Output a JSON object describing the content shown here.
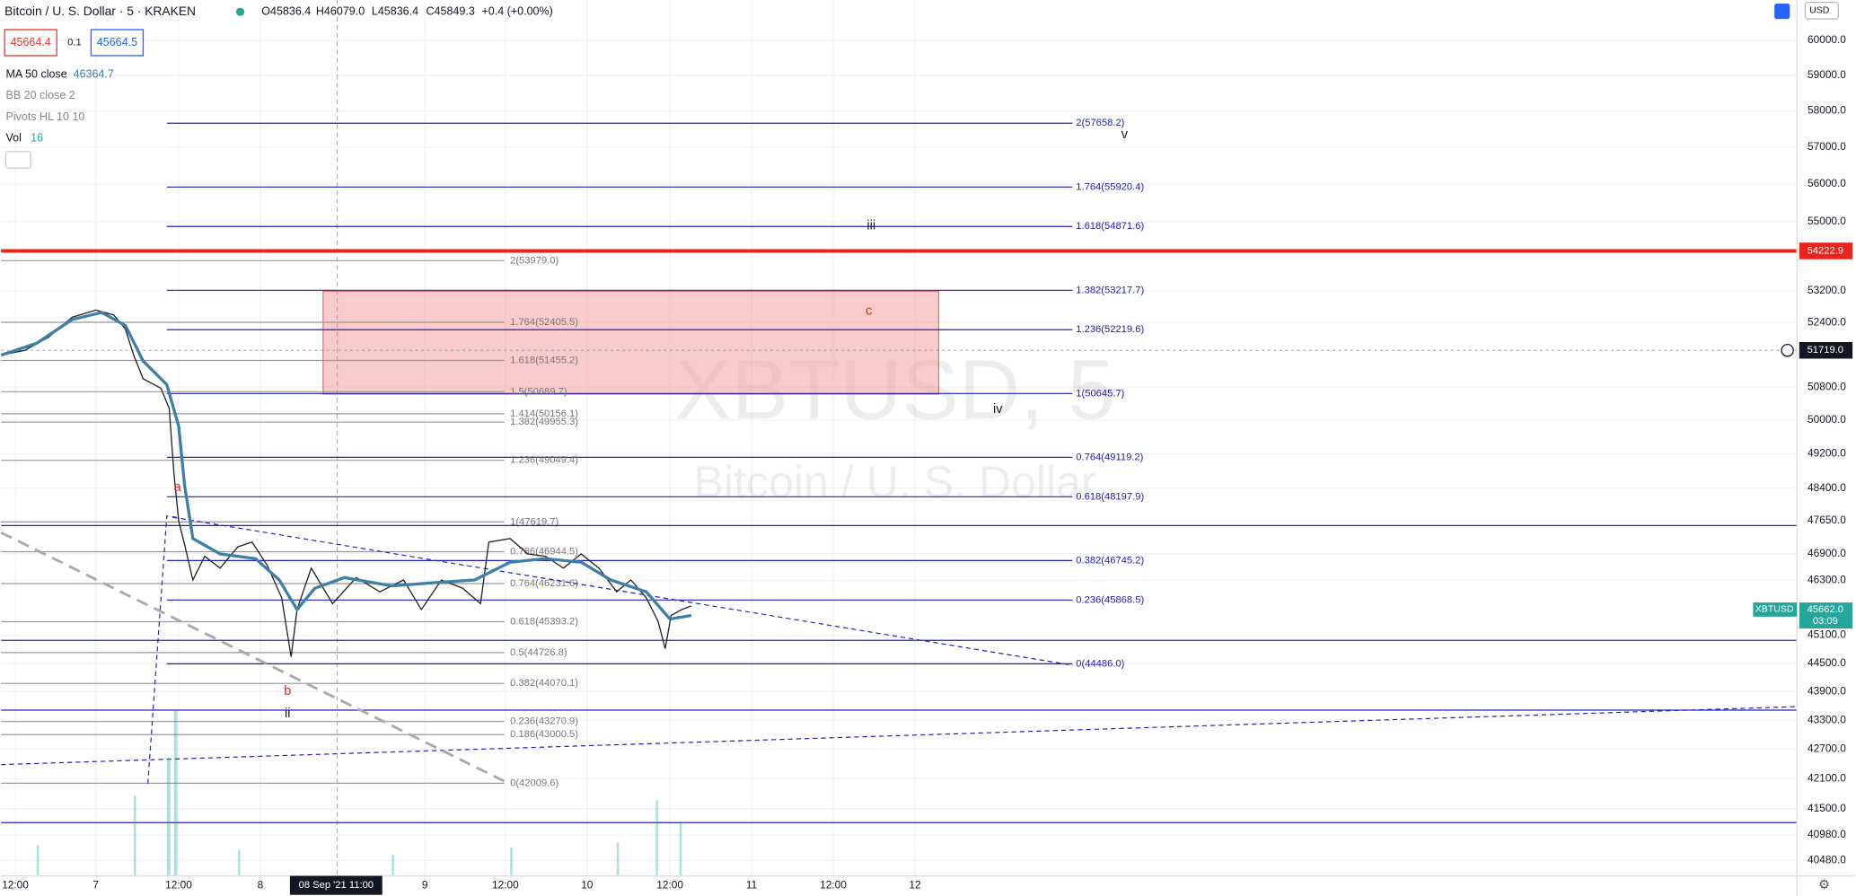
{
  "header": {
    "symbol": "Bitcoin / U. S. Dollar · 5 · KRAKEN",
    "open": "O45836.4",
    "high": "H46079.0",
    "low": "L45836.4",
    "close": "C45849.3",
    "change": "+0.4 (+0.00%)"
  },
  "trade": {
    "bid": "45664.4",
    "spread": "0.1",
    "ask": "45664.5"
  },
  "indicators": [
    {
      "name": "MA 50 close",
      "value": "46364.7"
    },
    {
      "name": "BB 20 close 2"
    },
    {
      "name": "Pivots HL 10 10"
    },
    {
      "name": "Vol",
      "value": "16"
    }
  ],
  "currency": "USD",
  "watermark": {
    "ticker": "XBTUSD, 5",
    "description": "Bitcoin / U. S. Dollar"
  },
  "price_axis": [
    "60000.0",
    "59000.0",
    "58000.0",
    "57000.0",
    "56000.0",
    "55000.0",
    "53200.0",
    "52400.0",
    "50800.0",
    "50000.0",
    "49200.0",
    "48400.0",
    "47650.0",
    "46900.0",
    "46300.0",
    "45100.0",
    "44500.0",
    "43900.0",
    "43300.0",
    "42700.0",
    "42100.0",
    "41500.0",
    "40980.0",
    "40480.0"
  ],
  "time_axis": [
    "12:00",
    "7",
    "12:00",
    "8",
    "9",
    "12:00",
    "10",
    "12:00",
    "11",
    "12:00",
    "12"
  ],
  "crosshair_time": "08 Sep '21  11:00",
  "price_tags": {
    "alert": "54222.9",
    "crosshair": "51719.0",
    "symbol": "XBTUSD",
    "last": "45662.0",
    "countdown": "03:09"
  },
  "fib_upper": [
    "2(57658.2)",
    "1.764(55920.4)",
    "1.618(54871.6)",
    "1.382(53217.7)",
    "1.236(52219.6)",
    "1(50645.7)",
    "0.764(49119.2)",
    "0.618(48197.9)",
    "0.382(46745.2)",
    "0.236(45868.5)",
    "0(44486.0)"
  ],
  "fib_lower": [
    "2(53979.0)",
    "1.764(52405.5)",
    "1.618(51455.2)",
    "1.5(50689.7)",
    "1.414(50156.1)",
    "1.382(49955.3)",
    "1.236(49049.4)",
    "1(47619.7)",
    "0.786(46944.5)",
    "0.764(46231.6)",
    "0.618(45393.2)",
    "0.5(44726.8)",
    "0.382(44070.1)",
    "0.236(43270.9)",
    "0.186(43000.5)",
    "0(42009.6)"
  ],
  "wave_labels": [
    "a",
    "b",
    "c",
    "ii",
    "iii",
    "iv",
    "v"
  ]
}
